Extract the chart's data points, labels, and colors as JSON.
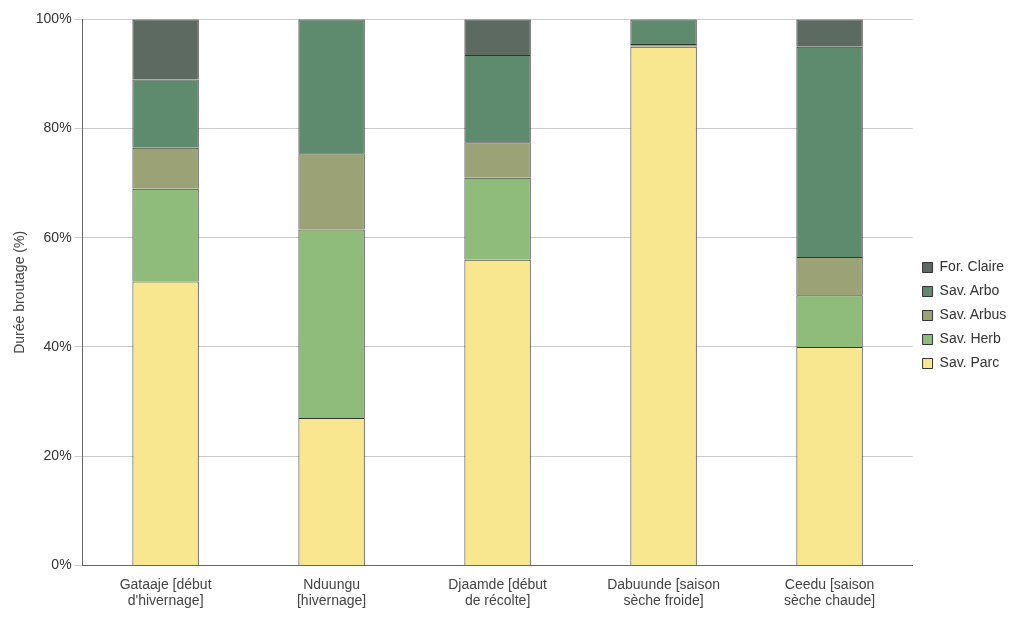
{
  "chart_data": {
    "type": "bar",
    "stacked": true,
    "ylabel": "Durée broutage (%)",
    "categories": [
      "Gataaje [début d'hivernage]",
      "Nduungu [hivernage]",
      "Djaamde [début de récolte]",
      "Dabuunde [saison sèche froide]",
      "Ceedu [saison sèche chaude]"
    ],
    "series": [
      {
        "name": "Sav. Parc",
        "color": "#f8e78f",
        "values": [
          52,
          27,
          56,
          95,
          40
        ]
      },
      {
        "name": "Sav. Herb",
        "color": "#8fbc7a",
        "values": [
          17,
          34.5,
          15,
          0,
          9.5
        ]
      },
      {
        "name": "Sav. Arbus",
        "color": "#9aa276",
        "values": [
          7.5,
          14,
          6.5,
          0.5,
          7
        ]
      },
      {
        "name": "Sav. Arbo",
        "color": "#5e8a6e",
        "values": [
          12.5,
          24.5,
          16,
          4.5,
          38.5
        ]
      },
      {
        "name": "For. Claire",
        "color": "#5d6a62",
        "values": [
          11,
          0,
          6.5,
          0,
          5
        ]
      }
    ],
    "ylim": [
      0,
      100
    ],
    "yticks": [
      {
        "value": 0,
        "label": "0%"
      },
      {
        "value": 20,
        "label": "20%"
      },
      {
        "value": 40,
        "label": "40%"
      },
      {
        "value": 60,
        "label": "60%"
      },
      {
        "value": 80,
        "label": "80%"
      },
      {
        "value": 100,
        "label": "100%"
      }
    ],
    "grid": "y",
    "legend": "right"
  }
}
